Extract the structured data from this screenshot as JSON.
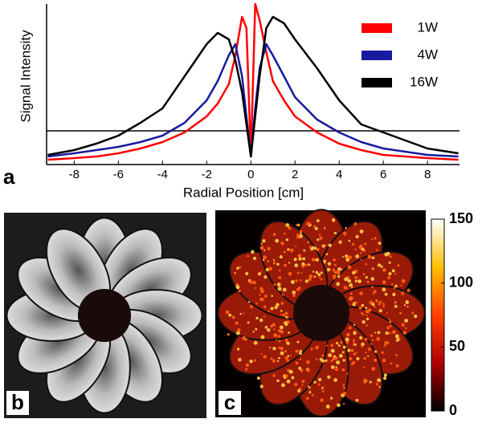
{
  "chart_data": [
    {
      "type": "line",
      "panel_label": "a",
      "xlabel": "Radial Position [cm]",
      "ylabel": "Signal Intensity",
      "x": [
        -9.2,
        -8,
        -7,
        -6,
        -5,
        -4,
        -3,
        -2,
        -1.5,
        -1,
        -0.7,
        -0.4,
        -0.2,
        0,
        0.2,
        0.4,
        0.7,
        1,
        1.5,
        2,
        3,
        4,
        5,
        6,
        7,
        8,
        9.4
      ],
      "series": [
        {
          "name": "1W",
          "color": "#ff0000",
          "values": [
            0.03,
            0.04,
            0.05,
            0.07,
            0.1,
            0.14,
            0.2,
            0.3,
            0.38,
            0.5,
            0.68,
            0.92,
            0.85,
            0.05,
            1.0,
            0.9,
            0.7,
            0.52,
            0.4,
            0.3,
            0.2,
            0.13,
            0.09,
            0.06,
            0.05,
            0.04,
            0.03
          ]
        },
        {
          "name": "4W",
          "color": "#1a1aa0",
          "values": [
            0.05,
            0.07,
            0.09,
            0.11,
            0.14,
            0.18,
            0.26,
            0.4,
            0.52,
            0.68,
            0.75,
            0.55,
            0.3,
            0.05,
            0.35,
            0.6,
            0.75,
            0.68,
            0.55,
            0.42,
            0.28,
            0.2,
            0.14,
            0.1,
            0.08,
            0.06,
            0.05
          ]
        },
        {
          "name": "16W",
          "color": "#000000",
          "values": [
            0.06,
            0.09,
            0.13,
            0.18,
            0.26,
            0.35,
            0.55,
            0.75,
            0.82,
            0.78,
            0.65,
            0.45,
            0.25,
            0.05,
            0.3,
            0.55,
            0.85,
            0.92,
            0.88,
            0.78,
            0.6,
            0.4,
            0.25,
            0.2,
            0.15,
            0.1,
            0.07
          ]
        }
      ],
      "xlim": [
        -9.25,
        9.45
      ],
      "xticks": [
        -8,
        -6,
        -4,
        -2,
        0,
        2,
        4,
        6,
        8
      ],
      "ylim": [
        0,
        1
      ],
      "hline": 0.21,
      "legend": "upper right"
    },
    {
      "type": "colorbar-images",
      "panel_labels": [
        "b",
        "c"
      ],
      "clim": [
        0,
        150
      ],
      "cticks": [
        0,
        50,
        100,
        150
      ],
      "colormap": [
        "#000000",
        "#b00000",
        "#ff4000",
        "#ffc000",
        "#ffffff"
      ]
    }
  ]
}
